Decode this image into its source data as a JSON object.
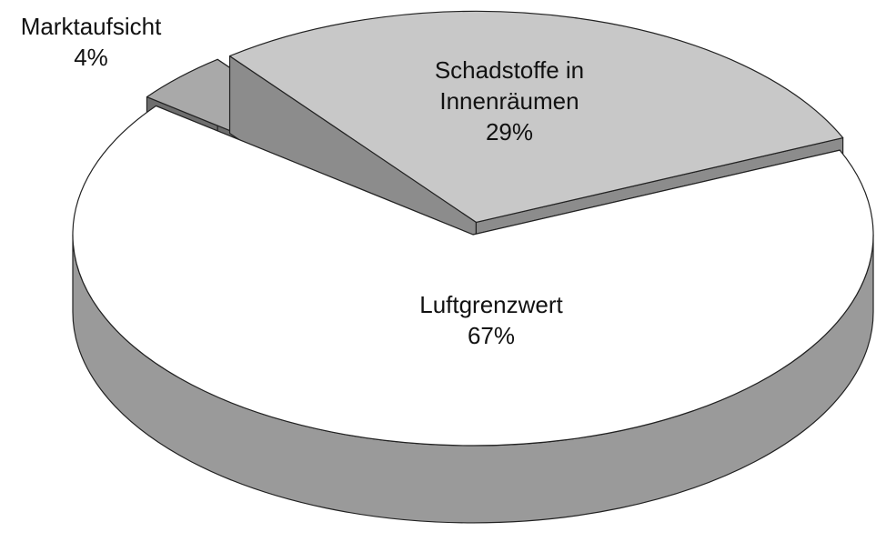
{
  "chart_data": {
    "type": "pie3d",
    "categories": [
      "Schadstoffe in Innenräumen",
      "Luftgrenzwert",
      "Marktaufsicht"
    ],
    "values": [
      29,
      67,
      4
    ],
    "value_labels": [
      "29%",
      "67%",
      "4%"
    ],
    "colors": [
      "#c8c8c8",
      "#ffffff",
      "#a9a9a9"
    ]
  }
}
